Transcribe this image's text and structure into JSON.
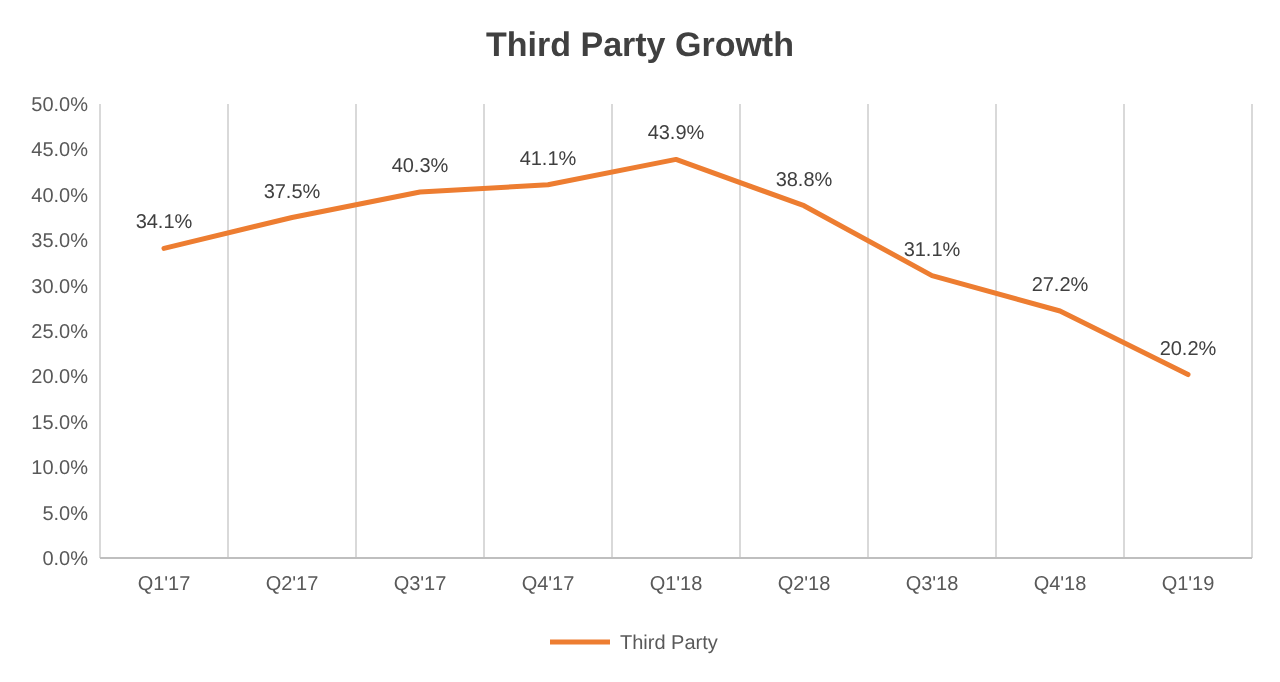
{
  "chart_data": {
    "type": "line",
    "title": "Third Party Growth",
    "categories": [
      "Q1'17",
      "Q2'17",
      "Q3'17",
      "Q4'17",
      "Q1'18",
      "Q2'18",
      "Q3'18",
      "Q4'18",
      "Q1'19"
    ],
    "series": [
      {
        "name": "Third Party",
        "color": "#ed7d31",
        "values": [
          34.1,
          37.5,
          40.3,
          41.1,
          43.9,
          38.8,
          31.1,
          27.2,
          20.2
        ],
        "value_labels": [
          "34.1%",
          "37.5%",
          "40.3%",
          "41.1%",
          "43.9%",
          "38.8%",
          "31.1%",
          "27.2%",
          "20.2%"
        ]
      }
    ],
    "ylim": [
      0,
      50
    ],
    "yticks": [
      {
        "value": 0,
        "label": "0.0%"
      },
      {
        "value": 5,
        "label": "5.0%"
      },
      {
        "value": 10,
        "label": "10.0%"
      },
      {
        "value": 15,
        "label": "15.0%"
      },
      {
        "value": 20,
        "label": "20.0%"
      },
      {
        "value": 25,
        "label": "25.0%"
      },
      {
        "value": 30,
        "label": "30.0%"
      },
      {
        "value": 35,
        "label": "35.0%"
      },
      {
        "value": 40,
        "label": "40.0%"
      },
      {
        "value": 45,
        "label": "45.0%"
      },
      {
        "value": 50,
        "label": "50.0%"
      }
    ],
    "grid": "x",
    "legend": "bottom",
    "marker": "none",
    "line_style": "solid"
  }
}
